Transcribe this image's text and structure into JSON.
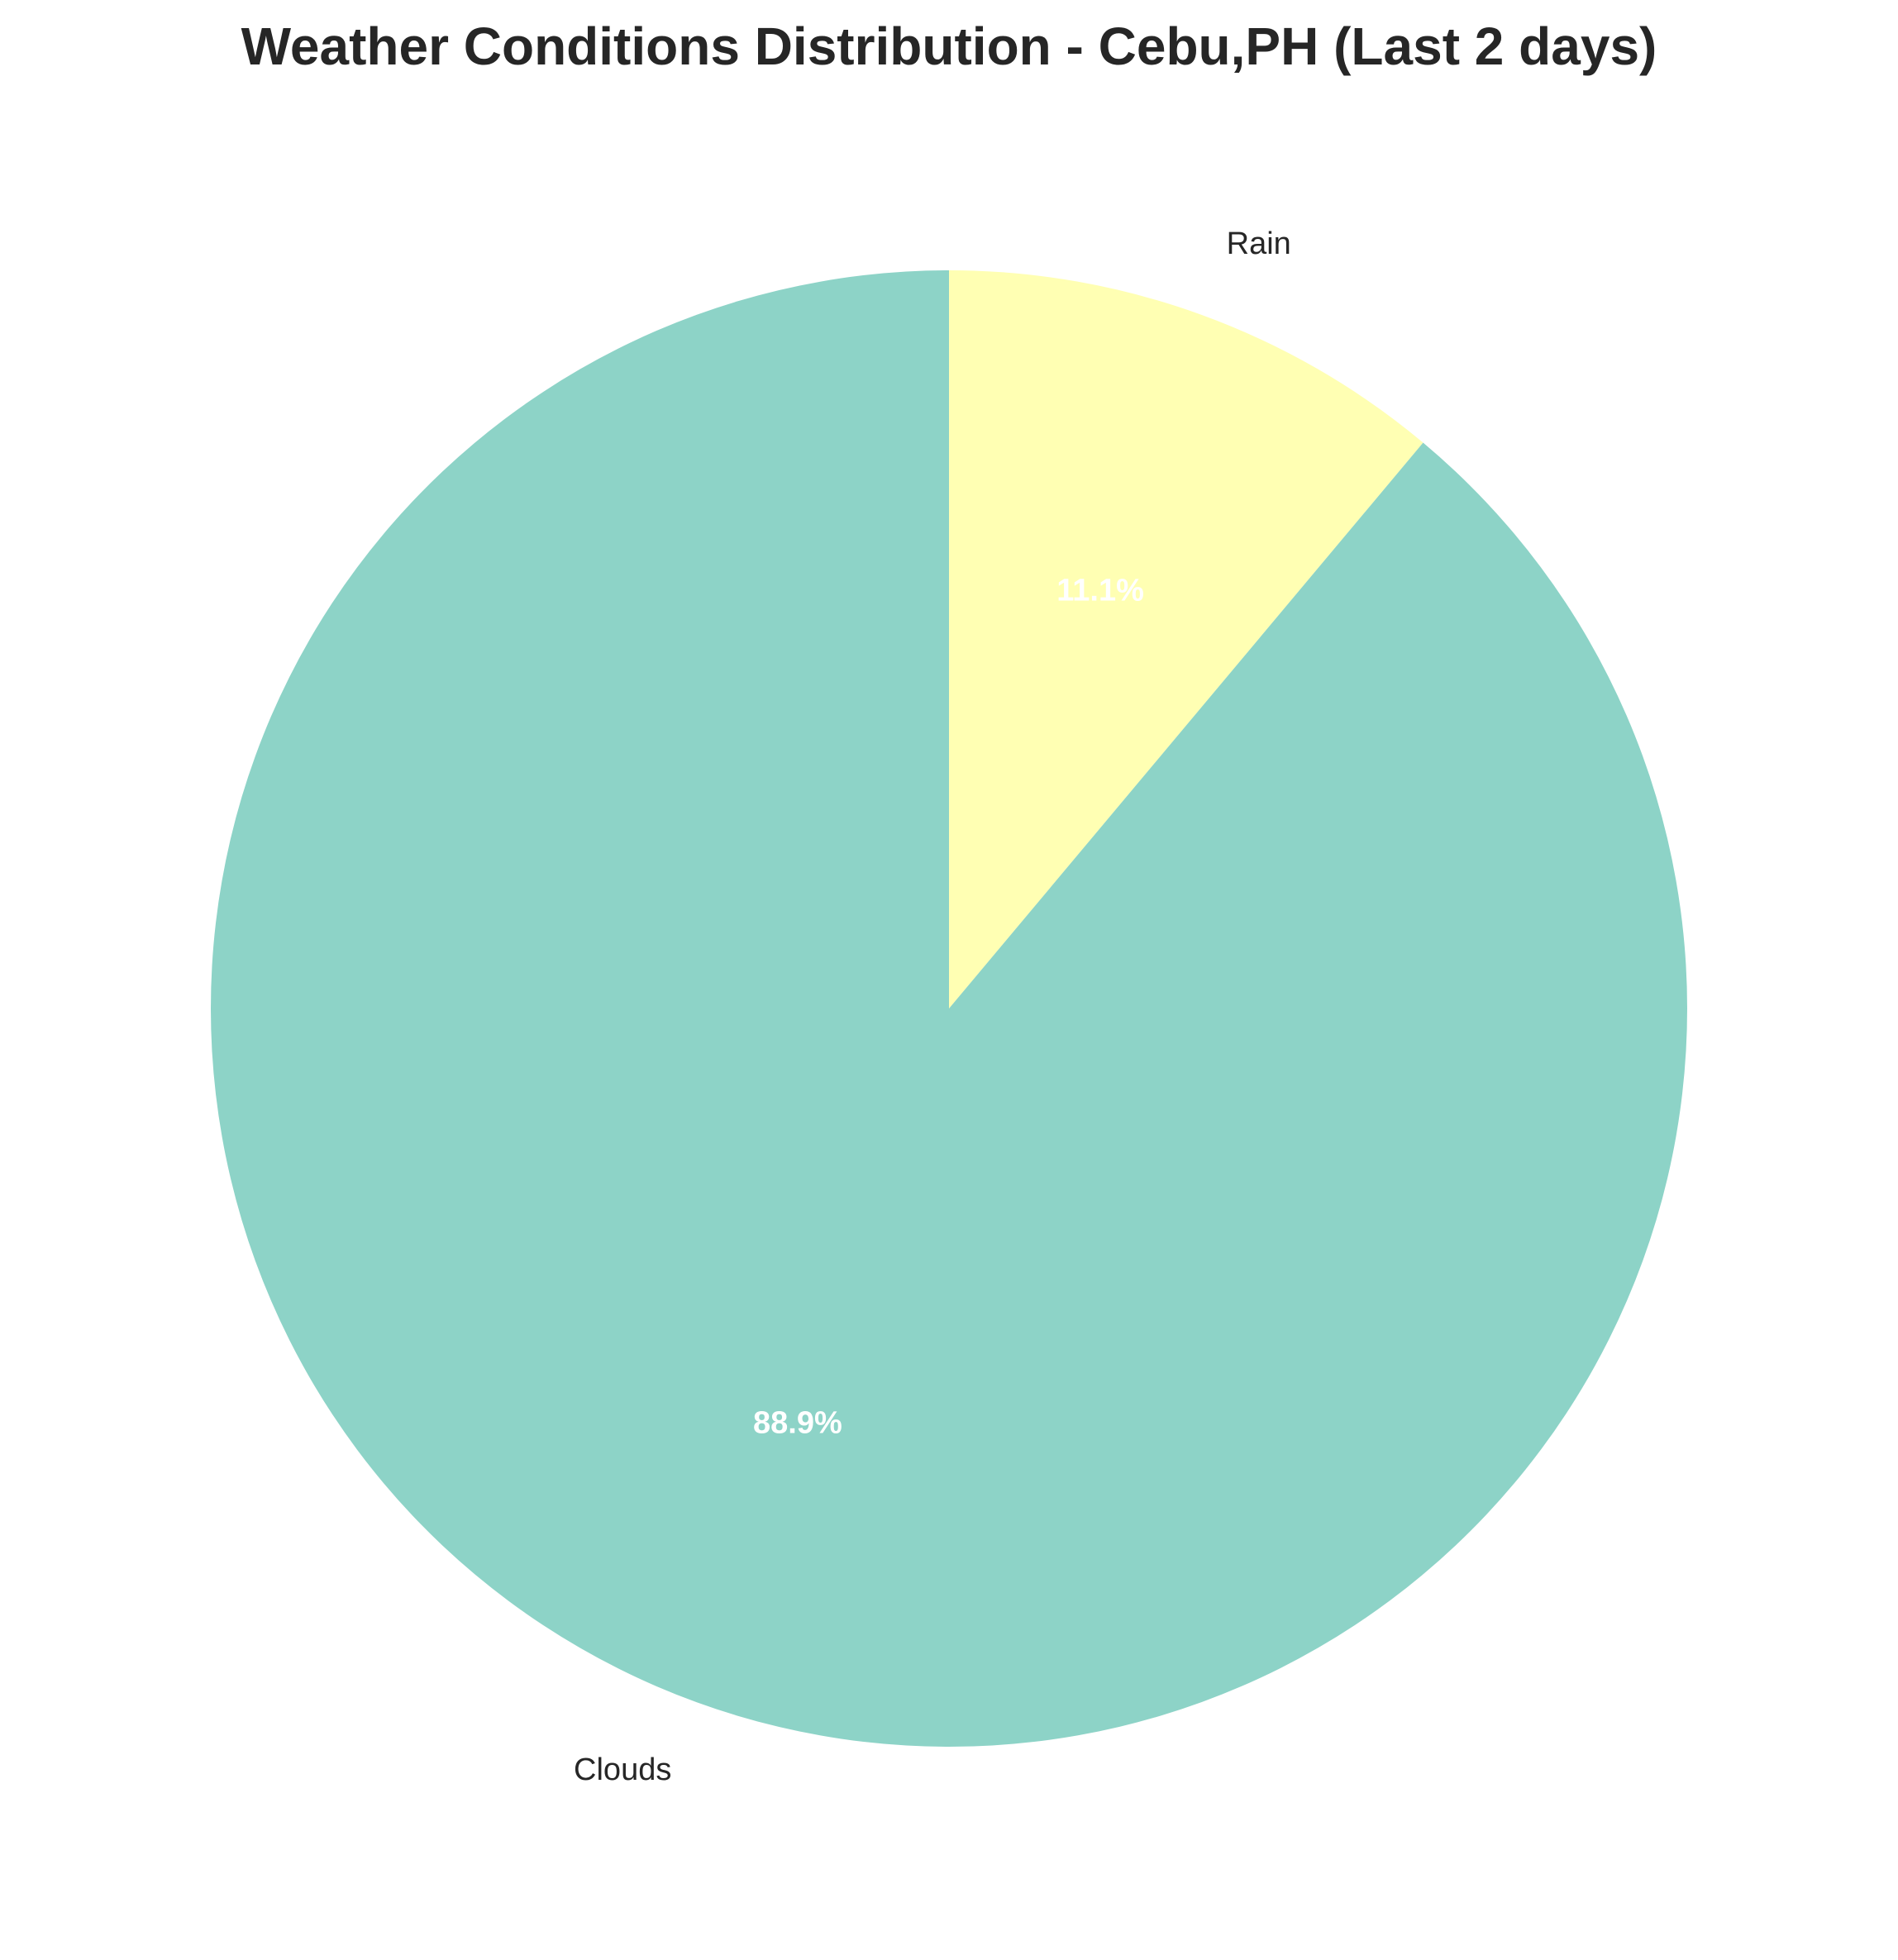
{
  "chart_data": {
    "type": "pie",
    "title": "Weather Conditions Distribution - Cebu,PH (Last 2 days)",
    "start_angle_deg": 90,
    "direction": "clockwise",
    "slices": [
      {
        "label": "Rain",
        "value": 11.1,
        "pct_label": "11.1%",
        "color": "#ffffb3"
      },
      {
        "label": "Clouds",
        "value": 88.9,
        "pct_label": "88.9%",
        "color": "#8dd3c7"
      }
    ]
  }
}
